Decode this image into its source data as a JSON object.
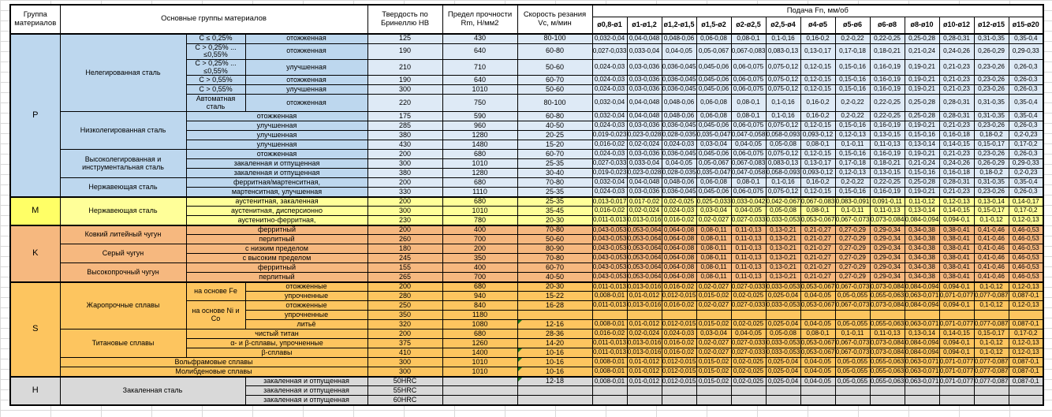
{
  "header": {
    "col_group": "Группа материалов",
    "col_main": "Основные группы материалов",
    "col_hb": "Твердость по Бринеллю НВ",
    "col_rm": "Предел прочности Rm, Н/мм2",
    "col_vc": "Скорость резания Vc, м/мин",
    "col_feed": "Подача Fn, мм/об",
    "diameters": [
      "ø0,8-ø1",
      "ø1-ø1,2",
      "ø1,2-ø1,5",
      "ø1,5-ø2",
      "ø2-ø2,5",
      "ø2,5-ø4",
      "ø4-ø5",
      "ø5-ø6",
      "ø6-ø8",
      "ø8-ø10",
      "ø10-ø12",
      "ø12-ø15",
      "ø15-ø20"
    ]
  },
  "colors": {
    "plt": "#BDD7EE",
    "pl": "#BDD7EE",
    "pd": "#DEEAF6",
    "mlt": "#FFFF66",
    "ml": "#FFFF99",
    "md": "#FFFF99",
    "klt": "#F6B87F",
    "kl": "#F6B87F",
    "kd": "#F6B87F",
    "slt": "#FDC55F",
    "sl": "#FDC55F",
    "sd": "#FDC55F",
    "hlt": "#D9D9D9",
    "hl": "#D9D9D9",
    "hd": "#D9D9D9",
    "green_marker": "#1F7A1F",
    "grid_line": "#D9D9D9",
    "border": "#000000"
  },
  "feed_sets": {
    "FA": [
      "0,032-0,04",
      "0,04-0,048",
      "0,048-0,06",
      "0,06-0,08",
      "0,08-0,1",
      "0,1-0,16",
      "0,16-0,2",
      "0,2-0,22",
      "0,22-0,25",
      "0,25-0,28",
      "0,28-0,31",
      "0,31-0,35",
      "0,35-0,4"
    ],
    "FB": [
      "0,027-0,033",
      "0,033-0,04",
      "0,04-0,05",
      "0,05-0,067",
      "0,067-0,083",
      "0,083-0,13",
      "0,13-0,17",
      "0,17-0,18",
      "0,18-0,21",
      "0,21-0,24",
      "0,24-0,26",
      "0,26-0,29",
      "0,29-0,33"
    ],
    "FC": [
      "0,024-0,03",
      "0,03-0,036",
      "0,036-0,045",
      "0,045-0,06",
      "0,06-0,075",
      "0,075-0,12",
      "0,12-0,15",
      "0,15-0,16",
      "0,16-0,19",
      "0,19-0,21",
      "0,21-0,23",
      "0,23-0,26",
      "0,26-0,3"
    ],
    "FD": [
      "0,019-0,023",
      "0,023-0,028",
      "0,028-0,035",
      "0,035-0,047",
      "0,047-0,058",
      "0,058-0,093",
      "0,093-0,12",
      "0,12-0,13",
      "0,13-0,15",
      "0,15-0,16",
      "0,16-0,18",
      "0,18-0,2",
      "0,2-0,23"
    ],
    "FE": [
      "0,016-0,02",
      "0,02-0,024",
      "0,024-0,03",
      "0,03-0,04",
      "0,04-0,05",
      "0,05-0,08",
      "0,08-0,1",
      "0,1-0,11",
      "0,11-0,13",
      "0,13-0,14",
      "0,14-0,15",
      "0,15-0,17",
      "0,17-0,2"
    ],
    "FF": [
      "0,013-0,017",
      "0,017-0,02",
      "0,02-0,025",
      "0,025-0,033",
      "0,033-0,042",
      "0,042-0,067",
      "0,067-0,083",
      "0,083-0,091",
      "0,091-0,11",
      "0,11-0,12",
      "0,12-0,13",
      "0,13-0,14",
      "0,14-0,17"
    ],
    "FG": [
      "0,011-0,013",
      "0,013-0,016",
      "0,016-0,02",
      "0,02-0,027",
      "0,027-0,033",
      "0,033-0,053",
      "0,053-0,067",
      "0,067-0,073",
      "0,073-0,084",
      "0,084-0,094",
      "0,094-0,1",
      "0,1-0,12",
      "0,12-0,13"
    ],
    "FH": [
      "0,043-0,053",
      "0,053-0,064",
      "0,064-0,08",
      "0,08-0,11",
      "0,11-0,13",
      "0,13-0,21",
      "0,21-0,27",
      "0,27-0,29",
      "0,29-0,34",
      "0,34-0,38",
      "0,38-0,41",
      "0,41-0,46",
      "0,46-0,53"
    ],
    "FI": [
      "0,008-0,01",
      "0,01-0,012",
      "0,012-0,015",
      "0,015-0,02",
      "0,02-0,025",
      "0,025-0,04",
      "0,04-0,05",
      "0,05-0,055",
      "0,055-0,063",
      "0,063-0,071",
      "0,071-0,077",
      "0,077-0,087",
      "0,087-0,1"
    ],
    "F0": [
      "",
      "",
      "",
      "",
      "",
      "",
      "",
      "",
      "",
      "",
      "",
      "",
      ""
    ]
  },
  "rows": [
    {
      "h": 12,
      "sep": true,
      "feeds": "FA",
      "fcls": "pd",
      "cells": [
        {
          "t": "P",
          "cl": "plt",
          "rs": 15
        },
        {
          "t": "Нелегированная сталь",
          "cl": "pl",
          "rs": 6
        },
        {
          "t": "C ≤ 0,25%",
          "cl": "pl"
        },
        {
          "t": "отожженная",
          "cl": "pl"
        },
        {
          "t": "125",
          "cl": "pd"
        },
        {
          "t": "430",
          "cl": "pd"
        },
        {
          "t": "80-100",
          "cl": "pd"
        }
      ]
    },
    {
      "h": 20,
      "feeds": "FB",
      "fcls": "pd",
      "cells": [
        {
          "t": "C > 0,25% ... ≤0,55%",
          "cl": "pl"
        },
        {
          "t": "отожженная",
          "cl": "pl"
        },
        {
          "t": "190",
          "cl": "pd"
        },
        {
          "t": "640",
          "cl": "pd"
        },
        {
          "t": "60-80",
          "cl": "pd"
        }
      ]
    },
    {
      "h": 20,
      "feeds": "FC",
      "fcls": "pd",
      "cells": [
        {
          "t": "C > 0,25% ... ≤0,55%",
          "cl": "pl"
        },
        {
          "t": "улучшенная",
          "cl": "pl"
        },
        {
          "t": "210",
          "cl": "pd"
        },
        {
          "t": "710",
          "cl": "pd"
        },
        {
          "t": "50-60",
          "cl": "pd"
        }
      ]
    },
    {
      "h": 12,
      "feeds": "FC",
      "fcls": "pd",
      "cells": [
        {
          "t": "C > 0,55%",
          "cl": "pl"
        },
        {
          "t": "отожженная",
          "cl": "pl"
        },
        {
          "t": "190",
          "cl": "pd"
        },
        {
          "t": "640",
          "cl": "pd"
        },
        {
          "t": "60-70",
          "cl": "pd"
        }
      ]
    },
    {
      "h": 12,
      "feeds": "FC",
      "fcls": "pd",
      "cells": [
        {
          "t": "C > 0,55%",
          "cl": "pl"
        },
        {
          "t": "улучшенная",
          "cl": "pl"
        },
        {
          "t": "300",
          "cl": "pd"
        },
        {
          "t": "1010",
          "cl": "pd"
        },
        {
          "t": "50-60",
          "cl": "pd"
        }
      ]
    },
    {
      "h": 22,
      "feeds": "FA",
      "fcls": "pd",
      "cells": [
        {
          "t": "Автоматная сталь",
          "cl": "pl"
        },
        {
          "t": "отожженная",
          "cl": "pl"
        },
        {
          "t": "220",
          "cl": "pd"
        },
        {
          "t": "750",
          "cl": "pd"
        },
        {
          "t": "80-100",
          "cl": "pd"
        }
      ]
    },
    {
      "h": 12,
      "feeds": "FA",
      "fcls": "pd",
      "cells": [
        {
          "t": "Низколегированная сталь",
          "cl": "pl",
          "rs": 4
        },
        {
          "t": "отожженная",
          "cl": "pl",
          "cs": 2
        },
        {
          "t": "175",
          "cl": "pd"
        },
        {
          "t": "590",
          "cl": "pd"
        },
        {
          "t": "60-80",
          "cl": "pd"
        }
      ]
    },
    {
      "h": 12,
      "feeds": "FC",
      "fcls": "pd",
      "cells": [
        {
          "t": "улучшенная",
          "cl": "pl",
          "cs": 2
        },
        {
          "t": "285",
          "cl": "pd"
        },
        {
          "t": "960",
          "cl": "pd"
        },
        {
          "t": "40-50",
          "cl": "pd"
        }
      ]
    },
    {
      "h": 12,
      "feeds": "FD",
      "fcls": "pd",
      "cells": [
        {
          "t": "улучшенная",
          "cl": "pl",
          "cs": 2
        },
        {
          "t": "380",
          "cl": "pd"
        },
        {
          "t": "1280",
          "cl": "pd"
        },
        {
          "t": "20-25",
          "cl": "pd"
        }
      ]
    },
    {
      "h": 12,
      "feeds": "FE",
      "fcls": "pd",
      "cells": [
        {
          "t": "улучшенная",
          "cl": "pl",
          "cs": 2
        },
        {
          "t": "430",
          "cl": "pd"
        },
        {
          "t": "1480",
          "cl": "pd"
        },
        {
          "t": "15-20",
          "cl": "pd"
        }
      ]
    },
    {
      "h": 12,
      "feeds": "FC",
      "fcls": "pd",
      "cells": [
        {
          "t": "Высоколегированная и инструментальная сталь",
          "cl": "pl",
          "rs": 3
        },
        {
          "t": "отожженная",
          "cl": "pl",
          "cs": 2
        },
        {
          "t": "200",
          "cl": "pd"
        },
        {
          "t": "680",
          "cl": "pd"
        },
        {
          "t": "60-70",
          "cl": "pd"
        }
      ]
    },
    {
      "h": 12,
      "feeds": "FB",
      "fcls": "pd",
      "cells": [
        {
          "t": "закаленная и отпущенная",
          "cl": "pl",
          "cs": 2
        },
        {
          "t": "300",
          "cl": "pd"
        },
        {
          "t": "1010",
          "cl": "pd"
        },
        {
          "t": "25-35",
          "cl": "pd"
        }
      ]
    },
    {
      "h": 12,
      "feeds": "FD",
      "fcls": "pd",
      "cells": [
        {
          "t": "закаленная и отпущенная",
          "cl": "pl",
          "cs": 2
        },
        {
          "t": "380",
          "cl": "pd"
        },
        {
          "t": "1280",
          "cl": "pd"
        },
        {
          "t": "30-40",
          "cl": "pd"
        }
      ]
    },
    {
      "h": 12,
      "feeds": "FA",
      "fcls": "pd",
      "cells": [
        {
          "t": "Нержавеющая сталь",
          "cl": "pl",
          "rs": 2
        },
        {
          "t": "ферритная/мартенситная,",
          "cl": "pl",
          "cs": 2
        },
        {
          "t": "200",
          "cl": "pd"
        },
        {
          "t": "680",
          "cl": "pd"
        },
        {
          "t": "70-80",
          "cl": "pd"
        }
      ]
    },
    {
      "h": 12,
      "feeds": "FC",
      "fcls": "pd",
      "cells": [
        {
          "t": "мартенситная, улучшенная",
          "cl": "pl",
          "cs": 2
        },
        {
          "t": "330",
          "cl": "pd"
        },
        {
          "t": "1110",
          "cl": "pd"
        },
        {
          "t": "25-35",
          "cl": "pd"
        }
      ]
    },
    {
      "h": 12,
      "sep": true,
      "feeds": "FF",
      "fcls": "md",
      "cells": [
        {
          "t": "M",
          "cl": "mlt",
          "rs": 3
        },
        {
          "t": "Нержавеющая сталь",
          "cl": "ml",
          "rs": 3
        },
        {
          "t": "аустенитная, закаленная",
          "cl": "ml",
          "cs": 2
        },
        {
          "t": "200",
          "cl": "md"
        },
        {
          "t": "680",
          "cl": "md"
        },
        {
          "t": "25-35",
          "cl": "md"
        }
      ]
    },
    {
      "h": 12,
      "feeds": "FE",
      "fcls": "md",
      "cells": [
        {
          "t": "аустенитная, дисперсионно",
          "cl": "ml",
          "cs": 2
        },
        {
          "t": "300",
          "cl": "md"
        },
        {
          "t": "1010",
          "cl": "md"
        },
        {
          "t": "35-45",
          "cl": "md"
        }
      ]
    },
    {
      "h": 12,
      "feeds": "FG",
      "fcls": "md",
      "cells": [
        {
          "t": "аустенитно-ферритная,",
          "cl": "ml",
          "cs": 2
        },
        {
          "t": "230",
          "cl": "md"
        },
        {
          "t": "780",
          "cl": "md"
        },
        {
          "t": "20-30",
          "cl": "md"
        }
      ]
    },
    {
      "h": 12,
      "sep": true,
      "feeds": "FH",
      "fcls": "kd",
      "cells": [
        {
          "t": "K",
          "cl": "klt",
          "rs": 6
        },
        {
          "t": "Ковкий литейный чугун",
          "cl": "kl",
          "rs": 2
        },
        {
          "t": "ферритный",
          "cl": "kl",
          "cs": 2
        },
        {
          "t": "200",
          "cl": "kd"
        },
        {
          "t": "400",
          "cl": "kd"
        },
        {
          "t": "70-80",
          "cl": "kd"
        }
      ]
    },
    {
      "h": 12,
      "feeds": "FH",
      "fcls": "kd",
      "cells": [
        {
          "t": "перлитный",
          "cl": "kl",
          "cs": 2
        },
        {
          "t": "260",
          "cl": "kd"
        },
        {
          "t": "700",
          "cl": "kd"
        },
        {
          "t": "50-60",
          "cl": "kd"
        }
      ]
    },
    {
      "h": 12,
      "feeds": "FH",
      "fcls": "kd",
      "cells": [
        {
          "t": "Серый чугун",
          "cl": "kl",
          "rs": 2
        },
        {
          "t": "с низким пределом",
          "cl": "kl",
          "cs": 2
        },
        {
          "t": "180",
          "cl": "kd"
        },
        {
          "t": "200",
          "cl": "kd"
        },
        {
          "t": "80-90",
          "cl": "kd"
        }
      ]
    },
    {
      "h": 12,
      "feeds": "FH",
      "fcls": "kd",
      "cells": [
        {
          "t": "с высоким пределом",
          "cl": "kl",
          "cs": 2
        },
        {
          "t": "245",
          "cl": "kd"
        },
        {
          "t": "350",
          "cl": "kd"
        },
        {
          "t": "70-80",
          "cl": "kd"
        }
      ]
    },
    {
      "h": 12,
      "feeds": "FH",
      "fcls": "kd",
      "cells": [
        {
          "t": "Высокопрочный чугун",
          "cl": "kl",
          "rs": 2
        },
        {
          "t": "ферритный",
          "cl": "kl",
          "cs": 2
        },
        {
          "t": "155",
          "cl": "kd"
        },
        {
          "t": "400",
          "cl": "kd"
        },
        {
          "t": "60-70",
          "cl": "kd"
        }
      ]
    },
    {
      "h": 12,
      "feeds": "FH",
      "fcls": "kd",
      "cells": [
        {
          "t": "перлитный",
          "cl": "kl",
          "cs": 2
        },
        {
          "t": "265",
          "cl": "kd"
        },
        {
          "t": "700",
          "cl": "kd"
        },
        {
          "t": "40-50",
          "cl": "kd"
        }
      ]
    },
    {
      "h": 12,
      "sep": true,
      "feeds": "FG",
      "fcls": "sd",
      "cells": [
        {
          "t": "S",
          "cl": "slt",
          "rs": 10
        },
        {
          "t": "Жаропрочные сплавы",
          "cl": "sl",
          "rs": 5
        },
        {
          "t": "на основе Fe",
          "cl": "sl",
          "rs": 2
        },
        {
          "t": "отожженные",
          "cl": "sl"
        },
        {
          "t": "200",
          "cl": "sd"
        },
        {
          "t": "680",
          "cl": "sd"
        },
        {
          "t": "20-30",
          "cl": "sd"
        }
      ]
    },
    {
      "h": 12,
      "feeds": "FI",
      "fcls": "sd",
      "cells": [
        {
          "t": "упрочненные",
          "cl": "sl"
        },
        {
          "t": "280",
          "cl": "sd"
        },
        {
          "t": "940",
          "cl": "sd"
        },
        {
          "t": "15-22",
          "cl": "sd"
        }
      ]
    },
    {
      "h": 12,
      "feeds": "FG",
      "fcls": "sd",
      "cells": [
        {
          "t": "на основе Ni и Co",
          "cl": "sl",
          "rs": 3
        },
        {
          "t": "отожженные",
          "cl": "sl"
        },
        {
          "t": "250",
          "cl": "sd"
        },
        {
          "t": "840",
          "cl": "sd"
        },
        {
          "t": "16-28",
          "cl": "sd"
        }
      ]
    },
    {
      "h": 12,
      "feeds": "F0",
      "fcls": "sd",
      "cells": [
        {
          "t": "упрочненные",
          "cl": "sl"
        },
        {
          "t": "350",
          "cl": "sd"
        },
        {
          "t": "1180",
          "cl": "sd"
        },
        {
          "t": "",
          "cl": "sd"
        }
      ]
    },
    {
      "h": 12,
      "feeds": "FI",
      "fcls": "sd",
      "cells": [
        {
          "t": "литьё",
          "cl": "sl"
        },
        {
          "t": "320",
          "cl": "sd"
        },
        {
          "t": "1080",
          "cl": "sd"
        },
        {
          "t": "12-16",
          "cl": "sd",
          "gm": true
        }
      ]
    },
    {
      "h": 12,
      "feeds": "FE",
      "fcls": "sd",
      "cells": [
        {
          "t": "Титановые сплавы",
          "cl": "sl",
          "rs": 3
        },
        {
          "t": "чистый титан",
          "cl": "sl",
          "cs": 2
        },
        {
          "t": "200",
          "cl": "sd"
        },
        {
          "t": "680",
          "cl": "sd"
        },
        {
          "t": "28-36",
          "cl": "sd"
        }
      ]
    },
    {
      "h": 12,
      "feeds": "FG",
      "fcls": "sd",
      "cells": [
        {
          "t": "α- и β-сплавы, упрочненные",
          "cl": "sl",
          "cs": 2
        },
        {
          "t": "375",
          "cl": "sd"
        },
        {
          "t": "1260",
          "cl": "sd"
        },
        {
          "t": "14-20",
          "cl": "sd"
        }
      ]
    },
    {
      "h": 12,
      "feeds": "FG",
      "fcls": "sd",
      "cells": [
        {
          "t": "β-сплавы",
          "cl": "sl",
          "cs": 2
        },
        {
          "t": "410",
          "cl": "sd"
        },
        {
          "t": "1400",
          "cl": "sd"
        },
        {
          "t": "10-16",
          "cl": "sd",
          "gm": true
        }
      ]
    },
    {
      "h": 12,
      "feeds": "FI",
      "fcls": "sd",
      "cells": [
        {
          "t": "Вольфрамовые сплавы",
          "cl": "sl",
          "cs": 3
        },
        {
          "t": "300",
          "cl": "sd"
        },
        {
          "t": "1010",
          "cl": "sd"
        },
        {
          "t": "10-16",
          "cl": "sd",
          "gm": true
        }
      ]
    },
    {
      "h": 12,
      "feeds": "FI",
      "fcls": "sd",
      "cells": [
        {
          "t": "Молибденовые сплавы",
          "cl": "sl",
          "cs": 3
        },
        {
          "t": "300",
          "cl": "sd"
        },
        {
          "t": "1010",
          "cl": "sd"
        },
        {
          "t": "10-16",
          "cl": "sd",
          "gm": true
        }
      ]
    },
    {
      "h": 12,
      "sep": true,
      "feeds": "FI",
      "fcls": "hd",
      "cells": [
        {
          "t": "H",
          "cl": "hlt",
          "rs": 3
        },
        {
          "t": "Закаленная сталь",
          "cl": "hl",
          "rs": 3,
          "cs": 2
        },
        {
          "t": "закаленная и отпущенная",
          "cl": "hl"
        },
        {
          "t": "50HRC",
          "cl": "hd"
        },
        {
          "t": "",
          "cl": "hd"
        },
        {
          "t": "12-18",
          "cl": "hd",
          "gm": true
        }
      ]
    },
    {
      "h": 12,
      "feeds": "F0",
      "fcls": "hd",
      "cells": [
        {
          "t": "закаленная и отпущенная",
          "cl": "hl"
        },
        {
          "t": "55HRC",
          "cl": "hd"
        },
        {
          "t": "",
          "cl": "hd"
        },
        {
          "t": "",
          "cl": "hd"
        }
      ]
    },
    {
      "h": 12,
      "feeds": "F0",
      "fcls": "hd",
      "cells": [
        {
          "t": "закаленная и отпущенная",
          "cl": "hl"
        },
        {
          "t": "60HRC",
          "cl": "hd"
        },
        {
          "t": "",
          "cl": "hd"
        },
        {
          "t": "",
          "cl": "hd"
        }
      ]
    }
  ]
}
